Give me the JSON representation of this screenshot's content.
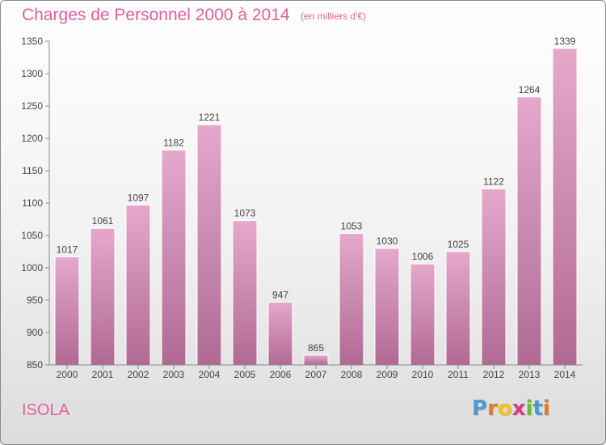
{
  "header": {
    "title": "Charges de Personnel 2000 à 2014",
    "subtitle": "(en milliers d'€)"
  },
  "footer": {
    "commune": "ISOLA",
    "logo_letters": [
      "P",
      "r",
      "o",
      "x",
      "i",
      "t",
      "i"
    ]
  },
  "colors": {
    "accent": "#e0609a",
    "bar_top": "#e5a8cb",
    "bar_bottom": "#b06a94",
    "logo": [
      "#4a9ad4",
      "#e07a2a",
      "#f2c21a",
      "#d83a8a",
      "#6cb83a",
      "#4a9ad4",
      "#e07a2a"
    ]
  },
  "chart_data": {
    "type": "bar",
    "title": "Charges de Personnel 2000 à 2014",
    "subtitle": "(en milliers d'€)",
    "xlabel": "",
    "ylabel": "",
    "categories": [
      "2000",
      "2001",
      "2002",
      "2003",
      "2004",
      "2005",
      "2006",
      "2007",
      "2008",
      "2009",
      "2010",
      "2011",
      "2012",
      "2013",
      "2014"
    ],
    "values": [
      1017,
      1061,
      1097,
      1182,
      1221,
      1073,
      947,
      865,
      1053,
      1030,
      1006,
      1025,
      1122,
      1264,
      1339
    ],
    "ylim": [
      850,
      1350
    ],
    "yticks": [
      850,
      900,
      950,
      1000,
      1050,
      1100,
      1150,
      1200,
      1250,
      1300,
      1350
    ],
    "grid": false,
    "legend": "none"
  }
}
